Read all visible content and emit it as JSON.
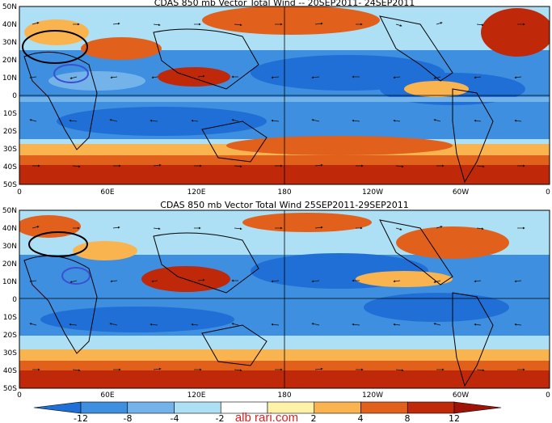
{
  "panels": [
    {
      "title": "CDAS 850 mb Vector Total Wind -- 20SEP2011- 24SEP2011",
      "lat_labels": [
        "50N",
        "40N",
        "30N",
        "20N",
        "10N",
        "0",
        "10S",
        "20S",
        "30S",
        "40S",
        "50S"
      ],
      "lon_labels": [
        "0",
        "60E",
        "120E",
        "180",
        "120W",
        "60W",
        "0"
      ]
    },
    {
      "title": "CDAS 850 mb Vector Total Wind 25SEP2011-29SEP2011",
      "lat_labels": [
        "50N",
        "40N",
        "30N",
        "20N",
        "10N",
        "0",
        "10S",
        "20S",
        "30S",
        "40S",
        "50S"
      ],
      "lon_labels": [
        "0",
        "60E",
        "120E",
        "180",
        "120W",
        "60W",
        "0"
      ]
    }
  ],
  "colorbar": {
    "labels": [
      "-12",
      "-8",
      "-4",
      "-2",
      "2",
      "4",
      "8",
      "12"
    ],
    "colors": [
      "#1f6fd6",
      "#3e8fe0",
      "#73b3ea",
      "#aee0f5",
      "#ffffff",
      "#fff2a8",
      "#f9b450",
      "#e0601c",
      "#c0280a",
      "#9e1208"
    ]
  },
  "watermark": "alb rari.com",
  "annotation_colors": {
    "black_oval": "#000000",
    "blue_oval": "#3a4fd1"
  }
}
